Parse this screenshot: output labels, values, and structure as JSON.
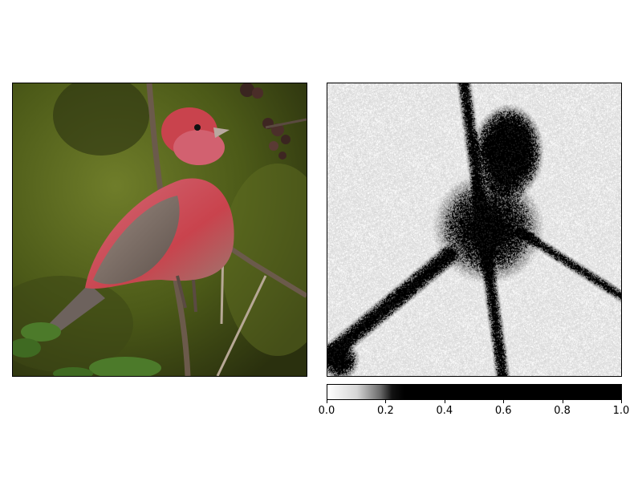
{
  "figure": {
    "left_panel": {
      "subject": "house finch photograph",
      "colors": {
        "background_dark": "#2f3a14",
        "background_mid": "#5a6b1f",
        "bird_red": "#c9434d",
        "bird_pink": "#d9868d",
        "bird_brown": "#7a6a62",
        "branch": "#6b5a4b",
        "leaf": "#4c7a2a"
      }
    },
    "right_panel": {
      "subject": "grayscale saliency map",
      "colormap": "gray_r"
    },
    "colorbar": {
      "range": [
        0,
        1
      ],
      "ticks": [
        "0.0",
        "0.2",
        "0.4",
        "0.6",
        "0.8",
        "1.0"
      ],
      "tick_values": [
        0.0,
        0.2,
        0.4,
        0.6,
        0.8,
        1.0
      ]
    }
  }
}
